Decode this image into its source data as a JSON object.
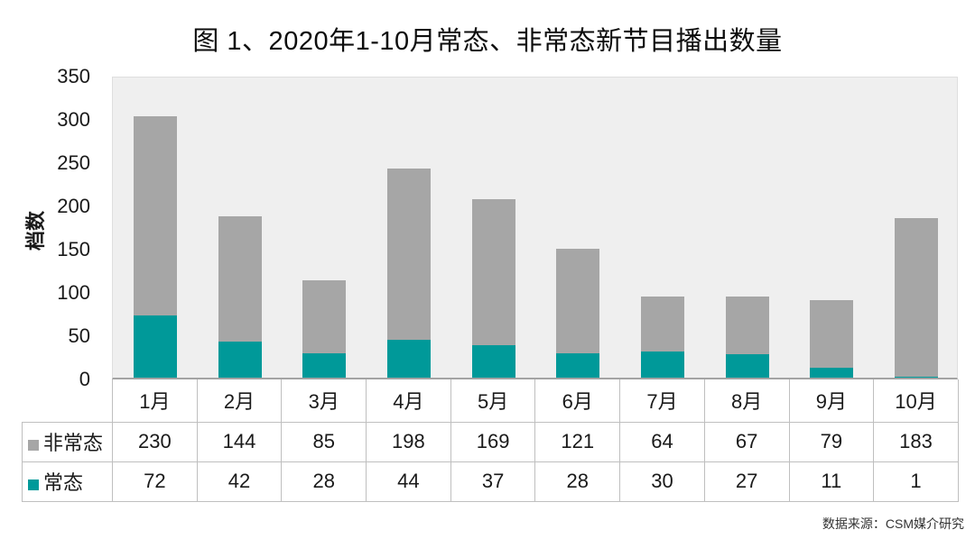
{
  "chart_data": {
    "type": "bar",
    "stacked": true,
    "title": "图 1、2020年1-10月常态、非常态新节目播出数量",
    "ylabel": "档数",
    "ylim": [
      0,
      350
    ],
    "ytick_step": 50,
    "grid": false,
    "legend_position": "table-left",
    "categories": [
      "1月",
      "2月",
      "3月",
      "4月",
      "5月",
      "6月",
      "7月",
      "8月",
      "9月",
      "10月"
    ],
    "series": [
      {
        "name": "非常态",
        "key": "non-normal",
        "color": "#a6a6a6",
        "values": [
          230,
          144,
          85,
          198,
          169,
          121,
          64,
          67,
          79,
          183
        ]
      },
      {
        "name": "常态",
        "key": "normal",
        "color": "#009999",
        "values": [
          72,
          42,
          28,
          44,
          37,
          28,
          30,
          27,
          11,
          1
        ]
      }
    ],
    "stack_order_bottom_to_top": [
      "常态",
      "非常态"
    ]
  },
  "source_note": "数据来源：CSM媒介研究",
  "colors": {
    "normal_series": "#009999",
    "non_normal_series": "#a6a6a6",
    "plot_background": "#efefef",
    "table_border": "#bfbfbf",
    "axis_line": "#a3a3a3",
    "text": "#1a1a1a"
  }
}
